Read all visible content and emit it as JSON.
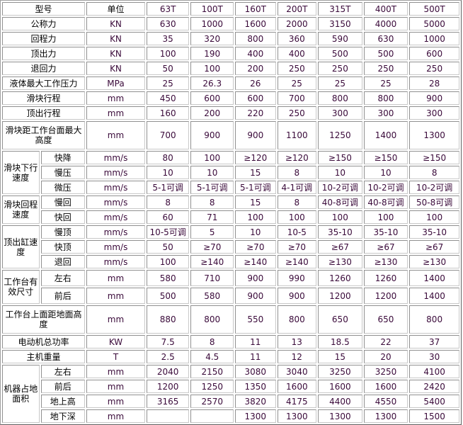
{
  "header": {
    "model_label": "型号",
    "unit_label": "单位",
    "models": [
      "63T",
      "100T",
      "160T",
      "200T",
      "315T",
      "400T",
      "500T"
    ]
  },
  "rows": [
    {
      "label": "公称力",
      "unit": "KN",
      "values": [
        "630",
        "1000",
        "1600",
        "2000",
        "3150",
        "4000",
        "5000"
      ]
    },
    {
      "label": "回程力",
      "unit": "KN",
      "values": [
        "35",
        "320",
        "800",
        "360",
        "590",
        "630",
        "1000"
      ]
    },
    {
      "label": "顶出力",
      "unit": "KN",
      "values": [
        "100",
        "190",
        "400",
        "400",
        "500",
        "500",
        "600"
      ]
    },
    {
      "label": "退回力",
      "unit": "KN",
      "values": [
        "50",
        "100",
        "200",
        "250",
        "250",
        "250",
        "250"
      ]
    },
    {
      "label": "液体最大工作压力",
      "unit": "MPa",
      "values": [
        "25",
        "26.3",
        "26",
        "25",
        "25",
        "25",
        "28"
      ]
    },
    {
      "label": "滑块行程",
      "unit": "mm",
      "values": [
        "450",
        "600",
        "600",
        "700",
        "800",
        "800",
        "900"
      ]
    },
    {
      "label": "顶出行程",
      "unit": "mm",
      "values": [
        "160",
        "200",
        "220",
        "250",
        "300",
        "300",
        "300"
      ]
    },
    {
      "label": "滑块距工作台面最大高度",
      "unit": "mm",
      "values": [
        "700",
        "900",
        "900",
        "1100",
        "1250",
        "1400",
        "1300"
      ],
      "tall": true
    },
    {
      "group": "滑块下行速度",
      "items": [
        {
          "label": "快降",
          "unit": "mm/s",
          "values": [
            "80",
            "100",
            "≥120",
            "≥120",
            "≥150",
            "≥150",
            "≥150"
          ]
        },
        {
          "label": "慢压",
          "unit": "mm/s",
          "values": [
            "10",
            "10",
            "15",
            "8",
            "10",
            "10",
            "8"
          ]
        },
        {
          "label": "微压",
          "unit": "mm/s",
          "values": [
            "5-1可调",
            "5-1可调",
            "5-1可调",
            "4-1可调",
            "10-2可调",
            "10-2可调",
            "10-2可调"
          ]
        }
      ]
    },
    {
      "group": "滑块回程速度",
      "items": [
        {
          "label": "慢回",
          "unit": "mm/s",
          "values": [
            "8",
            "8",
            "15",
            "8",
            "40-8可调",
            "40-8可调",
            "50-8可调"
          ]
        },
        {
          "label": "快回",
          "unit": "mm/s",
          "values": [
            "60",
            "71",
            "100",
            "100",
            "100",
            "100",
            "100"
          ]
        }
      ]
    },
    {
      "group": "顶出缸速度",
      "items": [
        {
          "label": "慢顶",
          "unit": "mm/s",
          "values": [
            "10-5可调",
            "5",
            "10",
            "10-5",
            "35-10",
            "35-10",
            "35-10"
          ]
        },
        {
          "label": "快顶",
          "unit": "mm/s",
          "values": [
            "50",
            "≥70",
            "≥70",
            "≥70",
            "≥67",
            "≥67",
            "≥67"
          ]
        },
        {
          "label": "退回",
          "unit": "mm/s",
          "values": [
            "100",
            "≥140",
            "≥140",
            "≥140",
            "≥130",
            "≥130",
            "≥130"
          ]
        }
      ]
    },
    {
      "group": "工作台有效尺寸",
      "mid": true,
      "items": [
        {
          "label": "左右",
          "unit": "mm",
          "values": [
            "580",
            "710",
            "900",
            "990",
            "1260",
            "1260",
            "1400"
          ]
        },
        {
          "label": "前后",
          "unit": "mm",
          "values": [
            "500",
            "580",
            "900",
            "900",
            "1200",
            "1200",
            "1400"
          ]
        }
      ]
    },
    {
      "label": "工作台上面距地面高度",
      "unit": "mm",
      "values": [
        "880",
        "800",
        "550",
        "800",
        "650",
        "650",
        "800"
      ],
      "tall": true
    },
    {
      "label": "电动机总功率",
      "unit": "KW",
      "values": [
        "7.5",
        "8",
        "11",
        "13",
        "18.5",
        "22",
        "37"
      ]
    },
    {
      "label": "主机重量",
      "unit": "T",
      "values": [
        "2.5",
        "4.5",
        "11",
        "12",
        "15",
        "20",
        "30"
      ]
    },
    {
      "group": "机器占地面积",
      "items": [
        {
          "label": "左右",
          "unit": "mm",
          "values": [
            "2040",
            "2150",
            "3080",
            "3040",
            "3250",
            "3250",
            "4100"
          ]
        },
        {
          "label": "前后",
          "unit": "mm",
          "values": [
            "1200",
            "1250",
            "1350",
            "1600",
            "1600",
            "1600",
            "2420"
          ]
        },
        {
          "label": "地上高",
          "unit": "mm",
          "values": [
            "3165",
            "2570",
            "3820",
            "4175",
            "4400",
            "4550",
            "5400"
          ]
        },
        {
          "label": "地下深",
          "unit": "mm",
          "values": [
            "",
            "",
            "1300",
            "1300",
            "1300",
            "1300",
            "1500"
          ]
        }
      ]
    }
  ]
}
